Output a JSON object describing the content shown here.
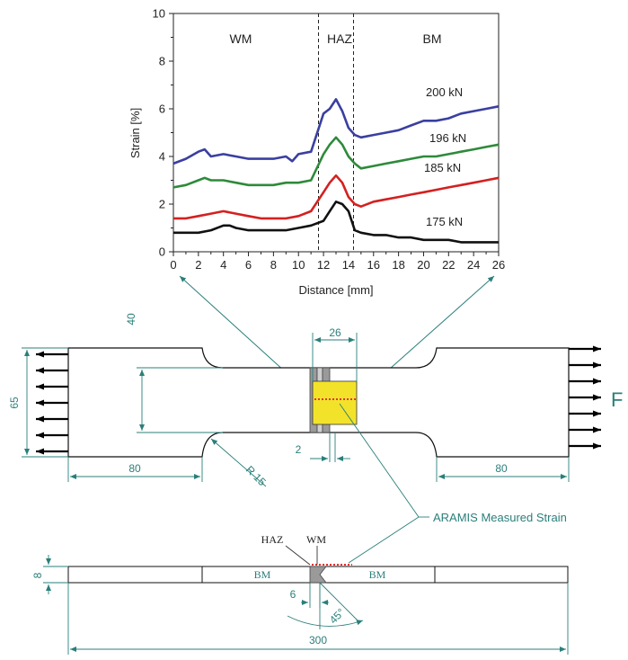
{
  "chart_data": {
    "type": "line",
    "xlabel": "Distance [mm]",
    "ylabel": "Strain [%]",
    "xlim": [
      0,
      26
    ],
    "ylim": [
      0,
      10
    ],
    "xticks": [
      "0",
      "2",
      "4",
      "6",
      "8",
      "10",
      "12",
      "14",
      "16",
      "18",
      "20",
      "22",
      "24",
      "26"
    ],
    "yticks": [
      "0",
      "2",
      "4",
      "6",
      "8",
      "10"
    ],
    "regions": [
      "WM",
      "HAZ",
      "BM"
    ],
    "boundaries": [
      11.6,
      14.4
    ],
    "series": [
      {
        "name": "200 kN",
        "color": "#3a3fa0",
        "x": [
          0,
          1,
          2,
          2.5,
          3,
          4,
          5,
          6,
          7,
          8,
          9,
          9.5,
          10,
          11,
          12,
          12.5,
          13,
          13.5,
          14,
          14.5,
          15,
          16,
          17,
          18,
          19,
          20,
          21,
          22,
          23,
          24,
          25,
          26
        ],
        "y": [
          3.7,
          3.9,
          4.2,
          4.3,
          4.0,
          4.1,
          4.0,
          3.9,
          3.9,
          3.9,
          4.0,
          3.8,
          4.1,
          4.2,
          5.8,
          6.0,
          6.4,
          5.9,
          5.2,
          4.9,
          4.8,
          4.9,
          5.0,
          5.1,
          5.3,
          5.5,
          5.5,
          5.6,
          5.8,
          5.9,
          6.0,
          6.1
        ]
      },
      {
        "name": "196 kN",
        "color": "#2e8a3a",
        "x": [
          0,
          1,
          2,
          2.5,
          3,
          4,
          5,
          6,
          7,
          8,
          9,
          10,
          11,
          12,
          12.5,
          13,
          13.5,
          14,
          14.5,
          15,
          16,
          17,
          18,
          19,
          20,
          21,
          22,
          23,
          24,
          25,
          26
        ],
        "y": [
          2.7,
          2.8,
          3.0,
          3.1,
          3.0,
          3.0,
          2.9,
          2.8,
          2.8,
          2.8,
          2.9,
          2.9,
          3.0,
          4.1,
          4.5,
          4.8,
          4.5,
          4.0,
          3.7,
          3.5,
          3.6,
          3.7,
          3.8,
          3.9,
          4.0,
          4.0,
          4.1,
          4.2,
          4.3,
          4.4,
          4.5
        ]
      },
      {
        "name": "185 kN",
        "color": "#d42020",
        "x": [
          0,
          1,
          2,
          3,
          4,
          5,
          6,
          7,
          8,
          9,
          10,
          11,
          12,
          12.5,
          13,
          13.5,
          14,
          14.5,
          15,
          16,
          17,
          18,
          19,
          20,
          21,
          22,
          23,
          24,
          25,
          26
        ],
        "y": [
          1.4,
          1.4,
          1.5,
          1.6,
          1.7,
          1.6,
          1.5,
          1.4,
          1.4,
          1.4,
          1.5,
          1.7,
          2.5,
          2.9,
          3.2,
          2.9,
          2.3,
          2.0,
          1.9,
          2.1,
          2.2,
          2.3,
          2.4,
          2.5,
          2.6,
          2.7,
          2.8,
          2.9,
          3.0,
          3.1
        ]
      },
      {
        "name": "175 kN",
        "color": "#111111",
        "x": [
          0,
          1,
          2,
          3,
          4,
          4.5,
          5,
          6,
          7,
          8,
          9,
          10,
          11,
          12,
          12.5,
          13,
          13.5,
          14,
          14.5,
          15,
          16,
          17,
          18,
          19,
          20,
          21,
          22,
          23,
          24,
          25,
          26
        ],
        "y": [
          0.8,
          0.8,
          0.8,
          0.9,
          1.1,
          1.1,
          1.0,
          0.9,
          0.9,
          0.9,
          0.9,
          1.0,
          1.1,
          1.3,
          1.7,
          2.1,
          2.0,
          1.7,
          0.9,
          0.8,
          0.7,
          0.7,
          0.6,
          0.6,
          0.5,
          0.5,
          0.5,
          0.4,
          0.4,
          0.4,
          0.4
        ]
      }
    ]
  },
  "specimen": {
    "force_label": "F",
    "dims": {
      "width": "40",
      "overall_width": "65",
      "gauge_window": "26",
      "weld_width": "2",
      "left_grip": "80",
      "right_grip": "80",
      "radius": "R 15"
    },
    "annotation": "ARAMIS Measured Strain"
  },
  "cross_section": {
    "labels": {
      "haz": "HAZ",
      "wm": "WM",
      "bm_left": "BM",
      "bm_right": "BM"
    },
    "dims": {
      "thickness": "8",
      "weld_offset": "6",
      "angle": "45°",
      "length": "300"
    }
  },
  "colors": {
    "dim": "#2a7f7a",
    "measure_area": "#f2e22a",
    "weld_gray": "#9a9a9a",
    "measure_points": "#e53030"
  }
}
